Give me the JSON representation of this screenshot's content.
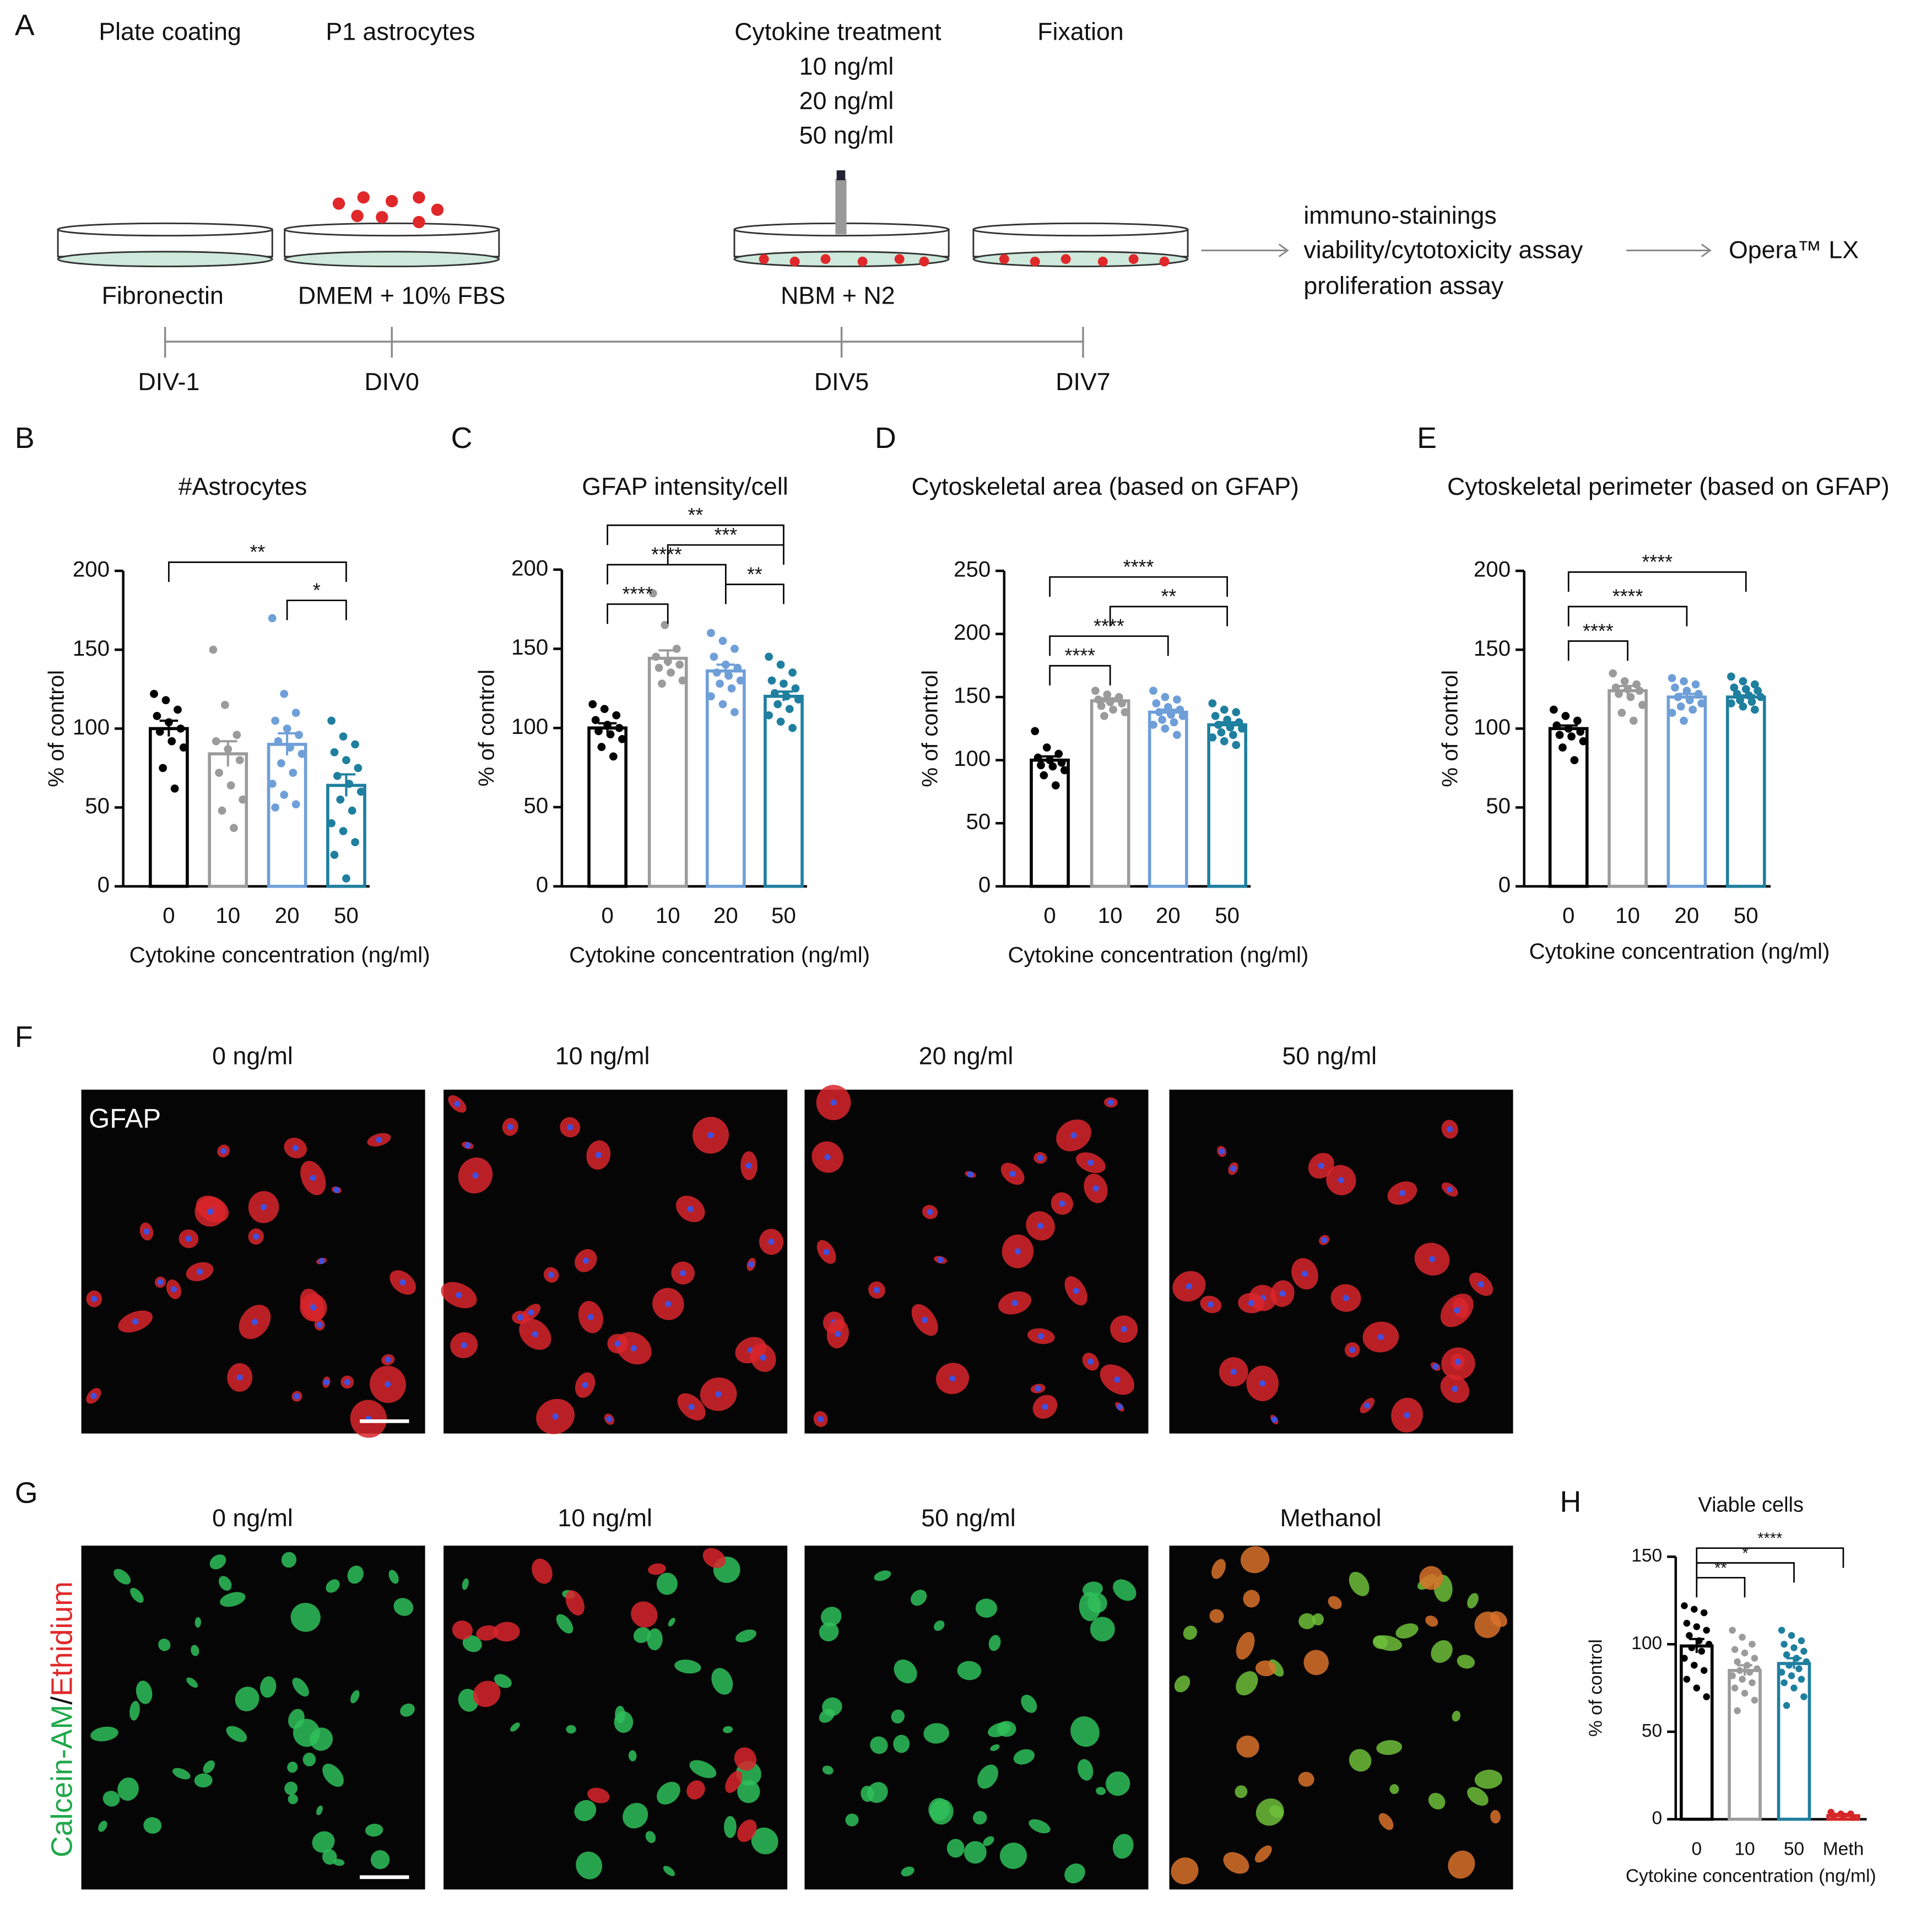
{
  "panel_labels": [
    "A",
    "B",
    "C",
    "D",
    "E",
    "F",
    "G",
    "H"
  ],
  "schematic": {
    "stages": [
      "Plate coating",
      "P1 astrocytes",
      "Cytokine treatment",
      "Fixation"
    ],
    "doses": [
      "10 ng/ml",
      "20 ng/ml",
      "50 ng/ml"
    ],
    "media": [
      "Fibronectin",
      "DMEM + 10% FBS",
      "NBM + N2"
    ],
    "assays": [
      "immuno-stainings",
      "viability/cytotoxicity assay",
      "proliferation assay"
    ],
    "readout": "Opera™ LX",
    "timepoints": [
      "DIV-1",
      "DIV0",
      "DIV5",
      "DIV7"
    ]
  },
  "images": {
    "F": {
      "columns": [
        "0 ng/ml",
        "10 ng/ml",
        "20 ng/ml",
        "50 ng/ml"
      ],
      "stain": "GFAP"
    },
    "G": {
      "columns": [
        "0 ng/ml",
        "10 ng/ml",
        "50 ng/ml",
        "Methanol"
      ],
      "stain": [
        "Calcein-AM",
        "/",
        "Ethidium"
      ]
    }
  },
  "chart_data": [
    {
      "type": "bar",
      "title": "#Astrocytes",
      "x_label": "Cytokine concentration (ng/ml)",
      "y_label": "% of control",
      "categories": [
        "0",
        "10",
        "20",
        "50"
      ],
      "values": [
        100,
        84,
        90,
        64
      ],
      "errors": [
        5,
        8,
        7,
        7
      ],
      "colors": [
        "#000000",
        "#9b9b9b",
        "#6f9fd8",
        "#1f7f9f"
      ],
      "points": [
        [
          122,
          118,
          112,
          108,
          104,
          100,
          98,
          92,
          88,
          75,
          62
        ],
        [
          150,
          115,
          96,
          92,
          87,
          80,
          72,
          64,
          55,
          48,
          37
        ],
        [
          170,
          122,
          110,
          105,
          100,
          96,
          92,
          88,
          84,
          78,
          72,
          65,
          58,
          52,
          50
        ],
        [
          105,
          95,
          90,
          85,
          80,
          75,
          70,
          65,
          60,
          55,
          48,
          40,
          35,
          28,
          20,
          5
        ]
      ],
      "ylim": [
        0,
        200
      ],
      "yticks": [
        0,
        50,
        100,
        150,
        200
      ],
      "significance": [
        {
          "from": 2,
          "to": 3,
          "label": "*"
        },
        {
          "from": 0,
          "to": 3,
          "label": "**"
        }
      ]
    },
    {
      "type": "bar",
      "title": "GFAP intensity/cell",
      "x_label": "Cytokine concentration (ng/ml)",
      "y_label": "% of control",
      "categories": [
        "0",
        "10",
        "20",
        "50"
      ],
      "values": [
        100,
        144,
        136,
        120
      ],
      "errors": [
        3,
        5,
        4,
        3
      ],
      "colors": [
        "#000000",
        "#9b9b9b",
        "#6f9fd8",
        "#1f7f9f"
      ],
      "points": [
        [
          115,
          112,
          108,
          105,
          102,
          100,
          98,
          96,
          93,
          88,
          82
        ],
        [
          185,
          165,
          150,
          145,
          142,
          140,
          138,
          135,
          130,
          128
        ],
        [
          160,
          155,
          150,
          145,
          140,
          138,
          135,
          133,
          130,
          128,
          125,
          120,
          115,
          110
        ],
        [
          145,
          140,
          135,
          130,
          128,
          125,
          122,
          120,
          118,
          115,
          112,
          108,
          104,
          100
        ]
      ],
      "ylim": [
        0,
        200
      ],
      "yticks": [
        0,
        50,
        100,
        150,
        200
      ],
      "significance": [
        {
          "from": 0,
          "to": 1,
          "label": "****"
        },
        {
          "from": 2,
          "to": 3,
          "label": "**"
        },
        {
          "from": 0,
          "to": 2,
          "label": "****"
        },
        {
          "from": 1,
          "to": 3,
          "label": "***"
        },
        {
          "from": 0,
          "to": 3,
          "label": "**"
        }
      ]
    },
    {
      "type": "bar",
      "title": "Cytoskeletal area (based on GFAP)",
      "x_label": "Cytokine concentration (ng/ml)",
      "y_label": "% of control",
      "categories": [
        "0",
        "10",
        "20",
        "50"
      ],
      "values": [
        100,
        147,
        138,
        128
      ],
      "errors": [
        3,
        2,
        2,
        2
      ],
      "colors": [
        "#000000",
        "#9b9b9b",
        "#6f9fd8",
        "#1f7f9f"
      ],
      "points": [
        [
          123,
          110,
          105,
          102,
          100,
          98,
          96,
          95,
          92,
          88,
          80
        ],
        [
          155,
          152,
          150,
          148,
          146,
          145,
          143,
          140,
          138,
          135
        ],
        [
          155,
          150,
          148,
          145,
          142,
          140,
          138,
          136,
          135,
          132,
          130,
          128,
          125,
          120
        ],
        [
          145,
          140,
          138,
          135,
          132,
          130,
          128,
          126,
          125,
          122,
          120,
          118,
          115,
          112
        ]
      ],
      "ylim": [
        0,
        250
      ],
      "yticks": [
        0,
        50,
        100,
        150,
        200,
        250
      ],
      "significance": [
        {
          "from": 0,
          "to": 1,
          "label": "****"
        },
        {
          "from": 0,
          "to": 2,
          "label": "****"
        },
        {
          "from": 1,
          "to": 3,
          "label": "**"
        },
        {
          "from": 0,
          "to": 3,
          "label": "****"
        }
      ]
    },
    {
      "type": "bar",
      "title": "Cytoskeletal perimeter (based on GFAP)",
      "x_label": "Cytokine concentration (ng/ml)",
      "y_label": "% of control",
      "categories": [
        "0",
        "10",
        "20",
        "50"
      ],
      "values": [
        100,
        124,
        120,
        120
      ],
      "errors": [
        2,
        3,
        2,
        1
      ],
      "colors": [
        "#000000",
        "#9b9b9b",
        "#6f9fd8",
        "#1f7f9f"
      ],
      "points": [
        [
          112,
          108,
          105,
          102,
          100,
          98,
          96,
          95,
          92,
          88,
          80
        ],
        [
          135,
          130,
          128,
          126,
          125,
          124,
          122,
          120,
          115,
          110,
          105
        ],
        [
          132,
          130,
          128,
          126,
          124,
          122,
          120,
          118,
          116,
          114,
          112,
          110,
          105
        ],
        [
          133,
          130,
          128,
          126,
          125,
          124,
          122,
          121,
          120,
          118,
          117,
          116,
          114,
          112
        ]
      ],
      "ylim": [
        0,
        200
      ],
      "yticks": [
        0,
        50,
        100,
        150,
        200
      ],
      "significance": [
        {
          "from": 0,
          "to": 1,
          "label": "****"
        },
        {
          "from": 0,
          "to": 2,
          "label": "****"
        },
        {
          "from": 0,
          "to": 3,
          "label": "****"
        }
      ]
    },
    {
      "type": "bar",
      "title": "Viable cells",
      "x_label": "Cytokine concentration (ng/ml)",
      "y_label": "% of control",
      "categories": [
        "0",
        "10",
        "50",
        "Meth"
      ],
      "values": [
        99,
        85,
        89,
        2
      ],
      "errors": [
        4,
        3,
        3,
        1
      ],
      "colors": [
        "#000000",
        "#9b9b9b",
        "#1f7f9f",
        "#d62728"
      ],
      "points": [
        [
          122,
          120,
          118,
          112,
          110,
          108,
          105,
          102,
          100,
          98,
          96,
          92,
          88,
          85,
          80,
          75,
          70
        ],
        [
          108,
          104,
          100,
          97,
          95,
          92,
          90,
          88,
          86,
          85,
          84,
          82,
          80,
          78,
          75,
          72,
          68,
          62
        ],
        [
          108,
          105,
          102,
          100,
          98,
          96,
          94,
          92,
          90,
          88,
          86,
          84,
          82,
          80,
          78,
          75,
          70,
          65
        ],
        [
          4,
          3,
          3,
          2,
          2,
          1
        ]
      ],
      "ylim": [
        0,
        150
      ],
      "yticks": [
        0,
        50,
        100,
        150
      ],
      "significance": [
        {
          "from": 0,
          "to": 1,
          "label": "**"
        },
        {
          "from": 0,
          "to": 2,
          "label": "*"
        },
        {
          "from": 0,
          "to": 3,
          "label": "****"
        }
      ]
    }
  ]
}
